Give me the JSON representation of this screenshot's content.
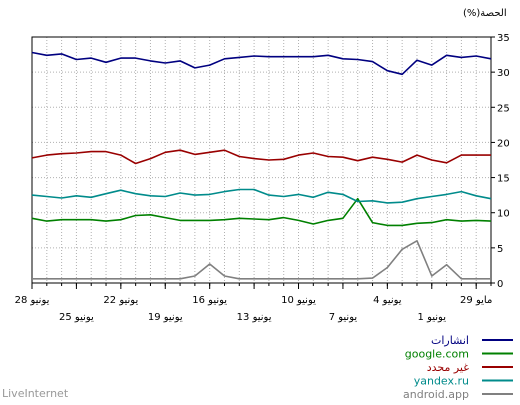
{
  "chart_data": {
    "type": "line",
    "ylabel": "الحصة(%)",
    "ylim": [
      0,
      35
    ],
    "yticks": [
      0,
      5,
      10,
      15,
      20,
      25,
      30,
      35
    ],
    "x_range": [
      0,
      31
    ],
    "x_ticks_row1": [
      {
        "x": 0,
        "label": "28 يونيو"
      },
      {
        "x": 6,
        "label": "22 يونيو"
      },
      {
        "x": 12,
        "label": "16 يونيو"
      },
      {
        "x": 18,
        "label": "10 يونيو"
      },
      {
        "x": 24,
        "label": "4 يونيو"
      },
      {
        "x": 30,
        "label": "29 مايو"
      }
    ],
    "x_ticks_row2": [
      {
        "x": 3,
        "label": "25 يونيو"
      },
      {
        "x": 9,
        "label": "19 يونيو"
      },
      {
        "x": 15,
        "label": "13 يونيو"
      },
      {
        "x": 21,
        "label": "7 يونيو"
      },
      {
        "x": 27,
        "label": "1 يونيو"
      }
    ],
    "grid": true,
    "legend_position": "bottom-right",
    "series": [
      {
        "name": "انشارات",
        "color": "#000080",
        "values": [
          32.8,
          32.4,
          32.6,
          31.8,
          32.0,
          31.4,
          32.0,
          32.0,
          31.6,
          31.3,
          31.6,
          30.6,
          31.0,
          31.9,
          32.1,
          32.3,
          32.2,
          32.2,
          32.2,
          32.2,
          32.4,
          31.9,
          31.8,
          31.5,
          30.2,
          29.7,
          31.7,
          31.0,
          32.4,
          32.1,
          32.3,
          31.9
        ]
      },
      {
        "name": "google.com",
        "color": "#008000",
        "values": [
          9.2,
          8.8,
          9.0,
          9.0,
          9.0,
          8.8,
          9.0,
          9.6,
          9.7,
          9.3,
          8.9,
          8.9,
          8.9,
          9.0,
          9.2,
          9.1,
          9.0,
          9.3,
          8.9,
          8.4,
          8.9,
          9.2,
          12.0,
          8.6,
          8.2,
          8.2,
          8.5,
          8.6,
          9.0,
          8.8,
          8.9,
          8.8
        ]
      },
      {
        "name": "غير محدد",
        "color": "#990000",
        "values": [
          17.8,
          18.2,
          18.4,
          18.5,
          18.7,
          18.7,
          18.2,
          17.0,
          17.7,
          18.6,
          18.9,
          18.3,
          18.6,
          18.9,
          18.0,
          17.7,
          17.5,
          17.6,
          18.2,
          18.5,
          18.0,
          17.9,
          17.4,
          17.9,
          17.6,
          17.2,
          18.2,
          17.5,
          17.1,
          18.2,
          18.2,
          18.2
        ]
      },
      {
        "name": "yandex.ru",
        "color": "#008B8B",
        "values": [
          12.5,
          12.3,
          12.1,
          12.4,
          12.2,
          12.7,
          13.2,
          12.7,
          12.4,
          12.3,
          12.8,
          12.5,
          12.6,
          13.0,
          13.3,
          13.3,
          12.5,
          12.3,
          12.6,
          12.2,
          12.9,
          12.6,
          11.6,
          11.7,
          11.4,
          11.5,
          12.0,
          12.3,
          12.6,
          13.0,
          12.4,
          12.0
        ]
      },
      {
        "name": "android.app",
        "color": "#808080",
        "values": [
          0.6,
          0.6,
          0.6,
          0.6,
          0.6,
          0.6,
          0.6,
          0.6,
          0.6,
          0.6,
          0.6,
          1.0,
          2.7,
          1.0,
          0.6,
          0.6,
          0.6,
          0.6,
          0.6,
          0.6,
          0.6,
          0.6,
          0.6,
          0.7,
          2.2,
          4.8,
          6.0,
          1.0,
          2.6,
          0.6,
          0.6,
          0.6
        ]
      }
    ]
  },
  "footer": {
    "label": "LiveInternet"
  }
}
